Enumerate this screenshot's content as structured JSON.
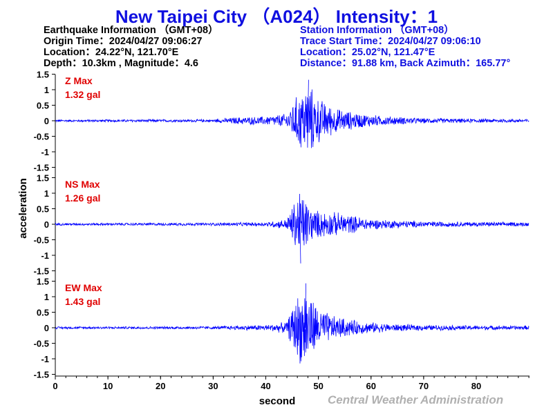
{
  "title": "New Taipei City （A024） Intensity：1",
  "earthquake": {
    "heading": "Earthquake Information （GMT+08）",
    "origin_time": "Origin Time：2024/04/27 09:06:27",
    "location": "Location：24.22°N, 121.70°E",
    "depth_magnitude": "Depth：10.3km , Magnitude：4.6"
  },
  "station": {
    "heading": "Station Information （GMT+08）",
    "trace_start": "Trace Start Time：2024/04/27 09:06:10",
    "location": "Location：25.02°N, 121.47°E",
    "distance_azimuth": "Distance：91.88 km, Back Azimuth：165.77°"
  },
  "credit": "Central Weather Administration",
  "colors": {
    "trace": "#0000ff",
    "title": "#1010e0",
    "max_label": "#e00000",
    "credit": "#b0b0b0"
  },
  "chart_data": {
    "type": "line",
    "xlabel": "second",
    "ylabel": "acceleration",
    "xlim": [
      0,
      90
    ],
    "x_ticks": [
      0,
      10,
      20,
      30,
      40,
      50,
      60,
      70,
      80
    ],
    "y_ticks": [
      -1.5,
      -1,
      -0.5,
      0,
      0.5,
      1,
      1.5
    ],
    "ylim": [
      -1.5,
      1.5
    ],
    "panels": [
      {
        "component_label": "Z Max",
        "max_label": "1.32 gal",
        "max": 1.32,
        "envelope": [
          [
            0,
            0.04
          ],
          [
            30,
            0.05
          ],
          [
            35,
            0.13
          ],
          [
            40,
            0.15
          ],
          [
            44,
            0.25
          ],
          [
            46,
            0.9
          ],
          [
            48,
            1.32
          ],
          [
            50,
            0.8
          ],
          [
            53,
            0.45
          ],
          [
            57,
            0.28
          ],
          [
            62,
            0.17
          ],
          [
            70,
            0.09
          ],
          [
            80,
            0.07
          ],
          [
            90,
            0.06
          ]
        ]
      },
      {
        "component_label": "NS Max",
        "max_label": "1.26 gal",
        "max": 1.26,
        "envelope": [
          [
            0,
            0.04
          ],
          [
            30,
            0.05
          ],
          [
            40,
            0.07
          ],
          [
            44,
            0.18
          ],
          [
            46.5,
            1.26
          ],
          [
            49,
            0.5
          ],
          [
            54,
            0.4
          ],
          [
            60,
            0.18
          ],
          [
            70,
            0.1
          ],
          [
            80,
            0.08
          ],
          [
            90,
            0.07
          ]
        ]
      },
      {
        "component_label": "EW Max",
        "max_label": "1.43 gal",
        "max": 1.43,
        "envelope": [
          [
            0,
            0.04
          ],
          [
            30,
            0.05
          ],
          [
            35,
            0.08
          ],
          [
            40,
            0.1
          ],
          [
            44,
            0.2
          ],
          [
            46,
            1.15
          ],
          [
            47.5,
            1.43
          ],
          [
            50,
            0.7
          ],
          [
            53,
            0.4
          ],
          [
            58,
            0.22
          ],
          [
            64,
            0.13
          ],
          [
            72,
            0.09
          ],
          [
            80,
            0.08
          ],
          [
            90,
            0.07
          ]
        ]
      }
    ]
  }
}
